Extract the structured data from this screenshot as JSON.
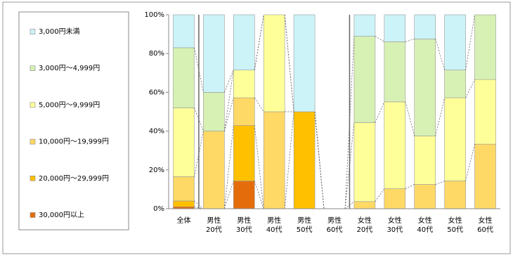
{
  "chart_data": {
    "type": "stacked_bar_100",
    "categories": [
      [
        "全体"
      ],
      [
        "男性",
        "20代"
      ],
      [
        "男性",
        "30代"
      ],
      [
        "男性",
        "40代"
      ],
      [
        "男性",
        "50代"
      ],
      [
        "男性",
        "60代"
      ],
      [
        "女性",
        "20代"
      ],
      [
        "女性",
        "30代"
      ],
      [
        "女性",
        "40代"
      ],
      [
        "女性",
        "50代"
      ],
      [
        "女性",
        "60代"
      ]
    ],
    "series": [
      {
        "name": "30,000円以上",
        "color": "#e46c0a",
        "values": [
          1,
          0,
          14.3,
          0,
          0,
          0,
          0,
          0,
          0,
          0,
          0
        ]
      },
      {
        "name": "20,000円～29,999円",
        "color": "#ffc000",
        "values": [
          3,
          0,
          28.6,
          0,
          50,
          0,
          0,
          0,
          0,
          0,
          0
        ]
      },
      {
        "name": "10,000円～19,999円",
        "color": "#ffd966",
        "values": [
          12.5,
          40,
          14.3,
          50,
          0,
          0,
          3.7,
          10.3,
          12.5,
          14.3,
          33.3
        ]
      },
      {
        "name": "5,000円～9,999円",
        "color": "#ffff99",
        "values": [
          35.5,
          0,
          14.3,
          50,
          0,
          0,
          40.7,
          44.8,
          25,
          42.9,
          33.3
        ]
      },
      {
        "name": "3,000円～4,999円",
        "color": "#d7f0b4",
        "values": [
          31,
          20,
          0,
          0,
          0,
          0,
          44.5,
          31,
          50,
          14.3,
          33.4
        ]
      },
      {
        "name": "3,000円未満",
        "color": "#ccf3f8",
        "values": [
          17,
          40,
          28.5,
          0,
          50,
          0,
          11.1,
          13.9,
          12.5,
          28.5,
          0
        ]
      }
    ],
    "ylim": [
      0,
      100
    ],
    "yticks": [
      {
        "value": 0,
        "label": "0%"
      },
      {
        "value": 20,
        "label": "20%"
      },
      {
        "value": 40,
        "label": "40%"
      },
      {
        "value": 60,
        "label": "60%"
      },
      {
        "value": 80,
        "label": "80%"
      },
      {
        "value": 100,
        "label": "100%"
      }
    ],
    "separators_after": [
      0,
      5
    ]
  }
}
